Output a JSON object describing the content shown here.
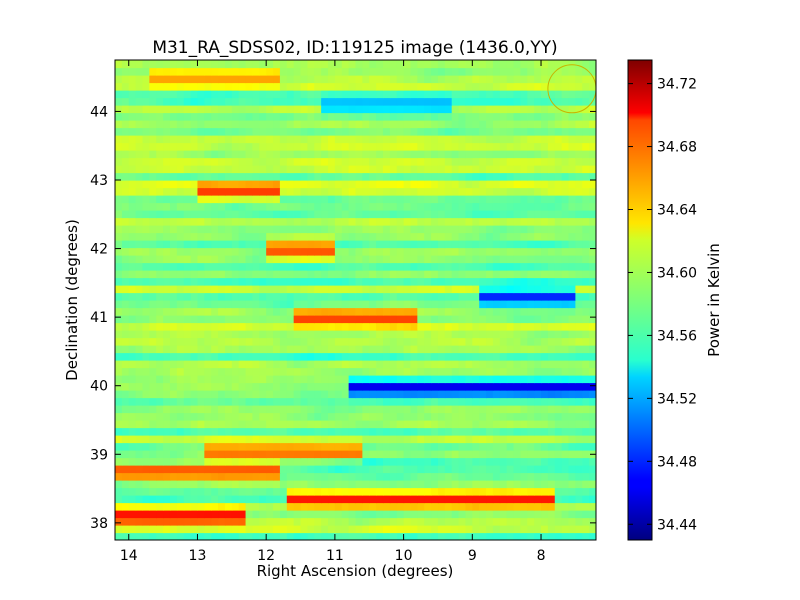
{
  "chart_data": {
    "type": "heatmap",
    "title": "M31_RA_SDSS02, ID:119125 image (1436.0,YY)",
    "xlabel": "Right Ascension (degrees)",
    "ylabel": "Declination (degrees)",
    "xlim": [
      14.2,
      7.2
    ],
    "ylim": [
      37.75,
      44.75
    ],
    "x_ticks": [
      14,
      13,
      12,
      11,
      10,
      9,
      8
    ],
    "y_ticks": [
      38,
      39,
      40,
      41,
      42,
      43,
      44
    ],
    "colormap": "jet",
    "colorbar": {
      "label": "Power in Kelvin",
      "range": [
        34.43,
        34.735
      ],
      "ticks": [
        "34.44",
        "34.48",
        "34.52",
        "34.56",
        "34.60",
        "34.64",
        "34.68",
        "34.72"
      ]
    },
    "beam_circle": {
      "ra": 7.55,
      "dec": 44.33,
      "radius_deg": 0.35,
      "color": "#c8b400"
    },
    "field_description": "Noisy horizontally-striped power map; hot stripes near Dec 38-39, cold stripe near Dec 40 at RA 7.5-10",
    "dominant_features": [
      {
        "dec": 38.35,
        "ra_range": [
          8.0,
          11.5
        ],
        "level": 34.69
      },
      {
        "dec": 38.1,
        "ra_range": [
          12.5,
          14.1
        ],
        "level": 34.7
      },
      {
        "dec": 38.75,
        "ra_range": [
          12.0,
          14.1
        ],
        "level": 34.68
      },
      {
        "dec": 39.05,
        "ra_range": [
          10.8,
          12.7
        ],
        "level": 34.67
      },
      {
        "dec": 39.97,
        "ra_range": [
          7.4,
          10.6
        ],
        "level": 34.46
      },
      {
        "dec": 41.3,
        "ra_range": [
          7.7,
          8.7
        ],
        "level": 34.48
      },
      {
        "dec": 44.1,
        "ra_range": [
          9.5,
          11.0
        ],
        "level": 34.52
      },
      {
        "dec": 41.0,
        "ra_range": [
          10.0,
          11.4
        ],
        "level": 34.68
      },
      {
        "dec": 42.85,
        "ra_range": [
          12.0,
          12.8
        ],
        "level": 34.68
      },
      {
        "dec": 42.0,
        "ra_range": [
          11.2,
          11.8
        ],
        "level": 34.68
      },
      {
        "dec": 44.5,
        "ra_range": [
          12.0,
          13.5
        ],
        "level": 34.65
      }
    ]
  }
}
